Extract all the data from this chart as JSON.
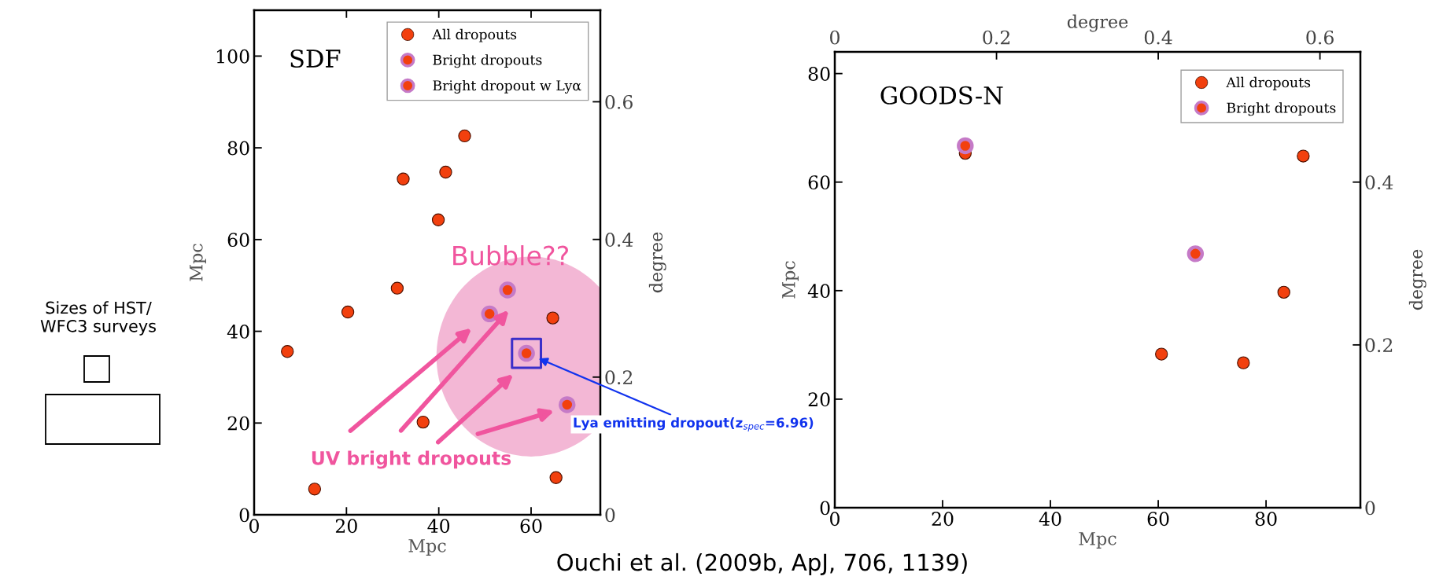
{
  "chart_data": [
    {
      "type": "scatter",
      "title": "SDF",
      "xlabel": "Mpc",
      "ylabel": "Mpc",
      "y2label": "degree",
      "xlim": [
        0,
        75
      ],
      "xticks": [
        0,
        20,
        40,
        60
      ],
      "ylim": [
        0,
        110
      ],
      "yticks": [
        0,
        20,
        40,
        60,
        80,
        100
      ],
      "y2lim": [
        0,
        0.733
      ],
      "y2ticks": [
        0,
        0.2,
        0.4,
        0.6
      ],
      "legend": "top right",
      "marker": "circle",
      "grid": false,
      "series": [
        {
          "name": "All dropouts",
          "color": "#f2400e",
          "x": [
            7.2,
            13.1,
            20.3,
            31.0,
            32.3,
            39.9,
            41.5,
            45.6,
            36.6,
            64.7,
            65.4
          ],
          "values": [
            35.6,
            5.6,
            44.2,
            49.4,
            73.2,
            64.3,
            74.7,
            82.6,
            20.2,
            42.9,
            8.1
          ]
        },
        {
          "name": "Bright dropouts",
          "color": "#f2400e",
          "x": [
            51.0,
            54.9,
            67.8
          ],
          "values": [
            43.8,
            49.0,
            24.0
          ]
        },
        {
          "name": "Bright dropout w Lyα",
          "color": "#f2400e",
          "x": [
            59.0
          ],
          "values": [
            35.2
          ]
        }
      ],
      "annotations": [
        "Bubble??",
        "Lya emitting dropout(z$_{spec}$=6.96)",
        "UV bright dropouts",
        "Sizes of HST/\nWFC3 surveys",
        "Ouchi et al. (2009b, ApJ, 706, 1139)"
      ]
    },
    {
      "type": "scatter",
      "title": "GOODS-N",
      "xlabel": "Mpc",
      "ylabel": "Mpc",
      "x2label": "degree",
      "y2label": "degree",
      "xlim": [
        0,
        97.5
      ],
      "xticks": [
        0,
        20,
        40,
        60,
        80
      ],
      "ylim": [
        0,
        84
      ],
      "yticks": [
        0,
        20,
        40,
        60,
        80
      ],
      "x2lim": [
        0,
        0.65
      ],
      "x2ticks": [
        0,
        0.2,
        0.4,
        0.6
      ],
      "y2lim": [
        0,
        0.56
      ],
      "y2ticks": [
        0,
        0.2,
        0.4
      ],
      "legend": "top right",
      "marker": "circle",
      "grid": false,
      "series": [
        {
          "name": "All dropouts",
          "color": "#f2400e",
          "x": [
            60.6,
            75.8,
            83.3,
            86.9,
            24.2
          ],
          "values": [
            28.3,
            26.7,
            39.7,
            64.8,
            65.3
          ]
        },
        {
          "name": "Bright dropouts",
          "color": "#f2400e",
          "x": [
            24.2,
            66.9
          ],
          "values": [
            66.7,
            46.8
          ]
        }
      ]
    }
  ]
}
